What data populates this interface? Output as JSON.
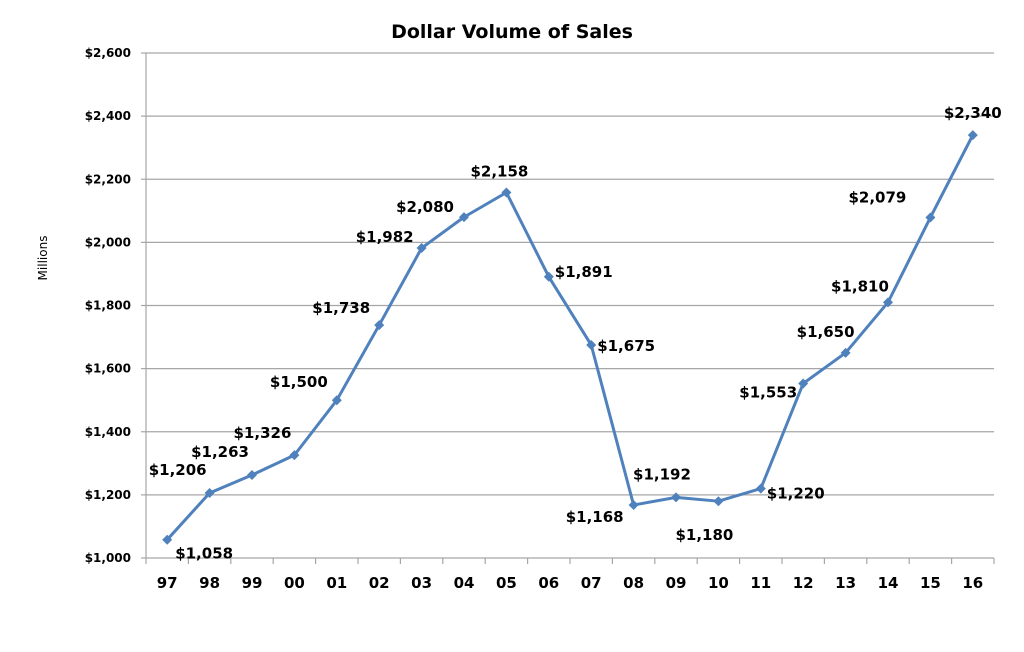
{
  "chart_data": {
    "type": "line",
    "title": "Dollar Volume of Sales",
    "xlabel": "",
    "ylabel": "Millions",
    "categories": [
      "97",
      "98",
      "99",
      "00",
      "01",
      "02",
      "03",
      "04",
      "05",
      "06",
      "07",
      "08",
      "09",
      "10",
      "11",
      "12",
      "13",
      "14",
      "15",
      "16"
    ],
    "series": [
      {
        "name": "Dollar Volume of Sales",
        "values": [
          1058,
          1206,
          1263,
          1326,
          1500,
          1738,
          1982,
          2080,
          2158,
          1891,
          1675,
          1168,
          1192,
          1180,
          1220,
          1553,
          1650,
          1810,
          2079,
          2340
        ],
        "labels": [
          "$1,058",
          "$1,206",
          "$1,263",
          "$1,326",
          "$1,500",
          "$1,738",
          "$1,982",
          "$2,080",
          "$2,158",
          "$1,891",
          "$1,675",
          "$1,168",
          "$1,192",
          "$1,180",
          "$1,220",
          "$1,553",
          "$1,650",
          "$1,810",
          "$2,079",
          "$2,340"
        ]
      }
    ],
    "ylim": [
      1000,
      2600
    ],
    "yticks": [
      1000,
      1200,
      1400,
      1600,
      1800,
      2000,
      2200,
      2400,
      2600
    ],
    "ytick_labels": [
      "$1,000",
      "$1,200",
      "$1,400",
      "$1,600",
      "$1,800",
      "$2,000",
      "$2,200",
      "$2,400",
      "$2,600"
    ],
    "grid": true,
    "legend": "none",
    "line_color": "#4f81bd"
  }
}
